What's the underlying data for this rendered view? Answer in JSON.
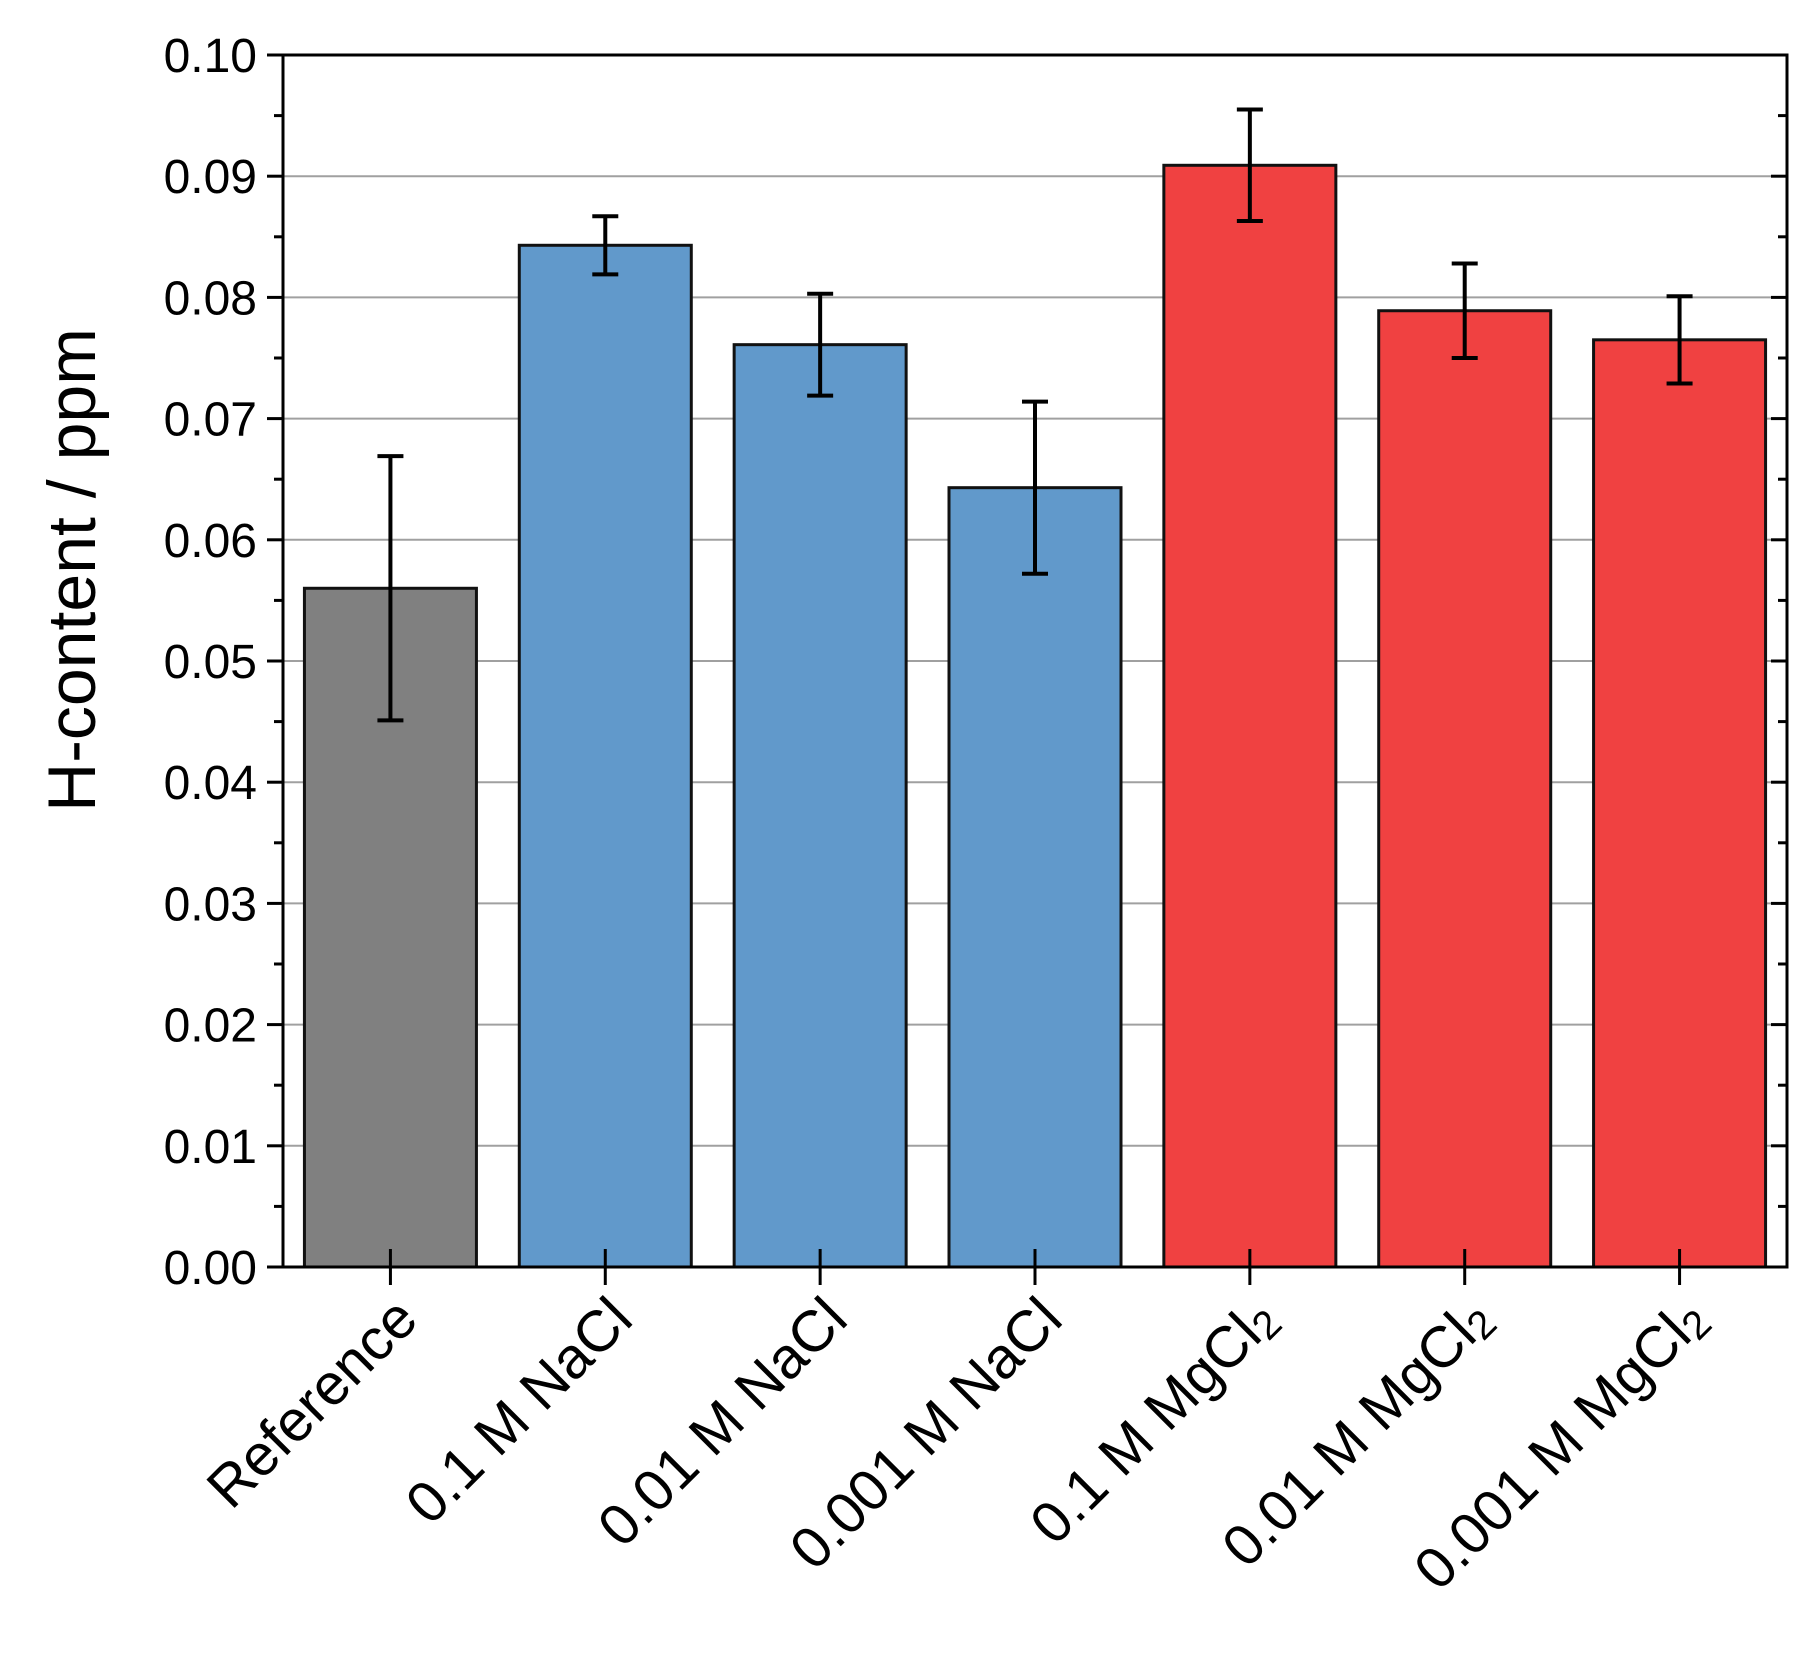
{
  "chart_data": {
    "type": "bar",
    "title": "",
    "xlabel": "",
    "ylabel": "H-content / ppm",
    "ylim": [
      0,
      0.1
    ],
    "yticks": [
      "0.00",
      "0.01",
      "0.02",
      "0.03",
      "0.04",
      "0.05",
      "0.06",
      "0.07",
      "0.08",
      "0.09",
      "0.10"
    ],
    "grid": true,
    "categories": [
      {
        "label": "Reference",
        "sub": ""
      },
      {
        "label": "0.1 M NaCl",
        "sub": ""
      },
      {
        "label": "0.01 M NaCl",
        "sub": ""
      },
      {
        "label": "0.001 M NaCl",
        "sub": ""
      },
      {
        "label": "0.1 M MgCl",
        "sub": "2"
      },
      {
        "label": "0.01 M MgCl",
        "sub": "2"
      },
      {
        "label": "0.001 M MgCl",
        "sub": "2"
      }
    ],
    "values": [
      0.056,
      0.0843,
      0.0761,
      0.0643,
      0.0909,
      0.0789,
      0.0765
    ],
    "errors": [
      0.0109,
      0.0024,
      0.0042,
      0.0071,
      0.0046,
      0.0039,
      0.0036
    ],
    "colors": [
      "#808080",
      "#6199cb",
      "#6199cb",
      "#6199cb",
      "#f04141",
      "#f04141",
      "#f04141"
    ]
  }
}
